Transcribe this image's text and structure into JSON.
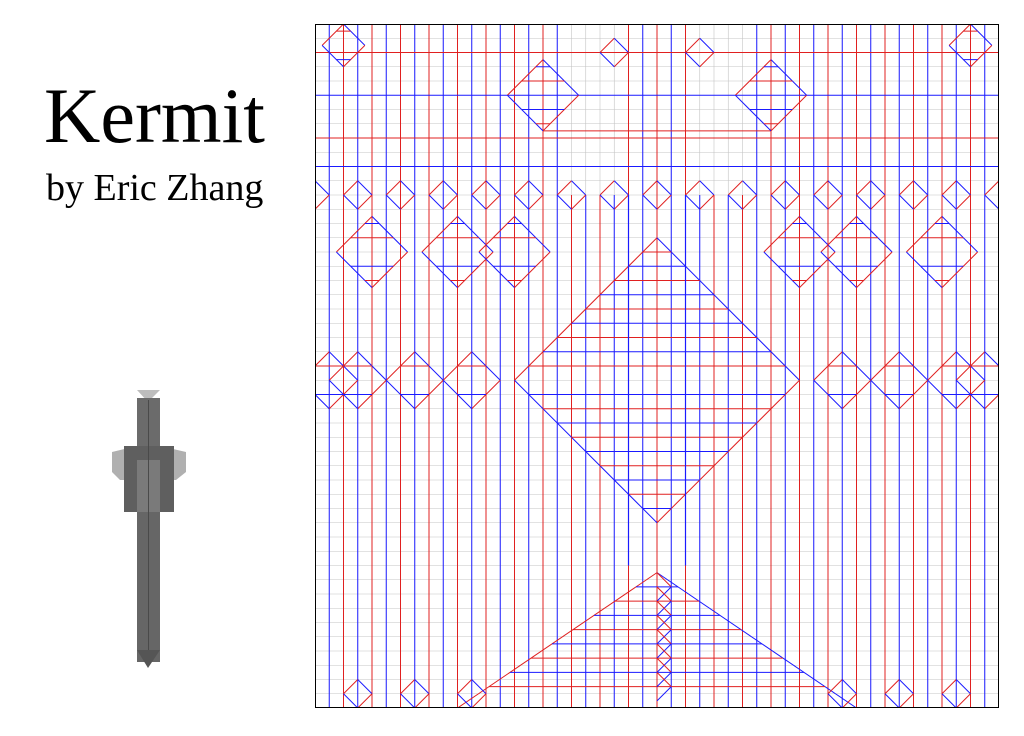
{
  "title": "Kermit",
  "subtitle": "by Eric Zhang",
  "crease_pattern": {
    "grid_divisions": 48,
    "colors": {
      "mountain": "#e02020",
      "valley": "#1a1aff",
      "grid": "#c4c4c4",
      "border": "#000000"
    }
  },
  "folded_preview": {
    "colors": {
      "body": "#6b6b6b",
      "dark": "#4a4a4a",
      "light": "#a8a8a8"
    }
  }
}
